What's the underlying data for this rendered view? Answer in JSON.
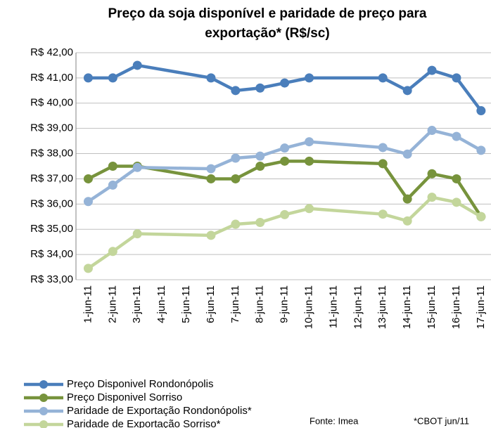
{
  "chart_data": {
    "type": "line",
    "title": "Preço da soja disponível e paridade de preço para exportação* (R$/sc)",
    "x": [
      "1-jun-11",
      "2-jun-11",
      "3-jun-11",
      "6-jun-11",
      "7-jun-11",
      "8-jun-11",
      "9-jun-11",
      "10-jun-11",
      "13-jun-11",
      "14-jun-11",
      "15-jun-11",
      "16-jun-11",
      "17-jun-11"
    ],
    "xticks": [
      "1-jun-11",
      "2-jun-11",
      "3-jun-11",
      "4-jun-11",
      "5-jun-11",
      "6-jun-11",
      "7-jun-11",
      "8-jun-11",
      "9-jun-11",
      "10-jun-11",
      "11-jun-11",
      "12-jun-11",
      "13-jun-11",
      "14-jun-11",
      "15-jun-11",
      "16-jun-11",
      "17-jun-11"
    ],
    "series": [
      {
        "name": "Preço Disponivel Rondonópolis",
        "color": "#4a7ebb",
        "values": [
          41.0,
          41.0,
          41.5,
          41.0,
          40.5,
          40.6,
          40.8,
          41.0,
          41.0,
          40.5,
          41.3,
          41.0,
          39.7
        ]
      },
      {
        "name": "Preço Disponivel Sorriso",
        "color": "#77933c",
        "values": [
          37.0,
          37.5,
          37.5,
          37.0,
          37.0,
          37.5,
          37.7,
          37.7,
          37.6,
          36.2,
          37.2,
          37.0,
          35.5
        ]
      },
      {
        "name": "Paridade de Exportação Rondonópolis*",
        "color": "#95b3d7",
        "values": [
          36.1,
          36.75,
          37.45,
          37.4,
          37.82,
          37.9,
          38.22,
          38.47,
          38.24,
          37.98,
          38.92,
          38.68,
          38.13
        ]
      },
      {
        "name": "Paridade de Exportação Sorriso*",
        "color": "#c3d69b",
        "values": [
          33.45,
          34.12,
          34.82,
          34.76,
          35.2,
          35.27,
          35.58,
          35.82,
          35.6,
          35.33,
          36.27,
          36.07,
          35.5
        ]
      }
    ],
    "ylim": [
      33,
      42
    ],
    "yticks": [
      {
        "value": 33,
        "label": "R$ 33,00"
      },
      {
        "value": 34,
        "label": "R$ 34,00"
      },
      {
        "value": 35,
        "label": "R$ 35,00"
      },
      {
        "value": 36,
        "label": "R$ 36,00"
      },
      {
        "value": 37,
        "label": "R$ 37,00"
      },
      {
        "value": 38,
        "label": "R$ 38,00"
      },
      {
        "value": 39,
        "label": "R$ 39,00"
      },
      {
        "value": 40,
        "label": "R$ 40,00"
      },
      {
        "value": 41,
        "label": "R$ 41,00"
      },
      {
        "value": 42,
        "label": "R$ 42,00"
      }
    ],
    "grid": true,
    "legend": "bottom-left",
    "source": "Fonte: Imea",
    "footnote": "*CBOT jun/11"
  }
}
